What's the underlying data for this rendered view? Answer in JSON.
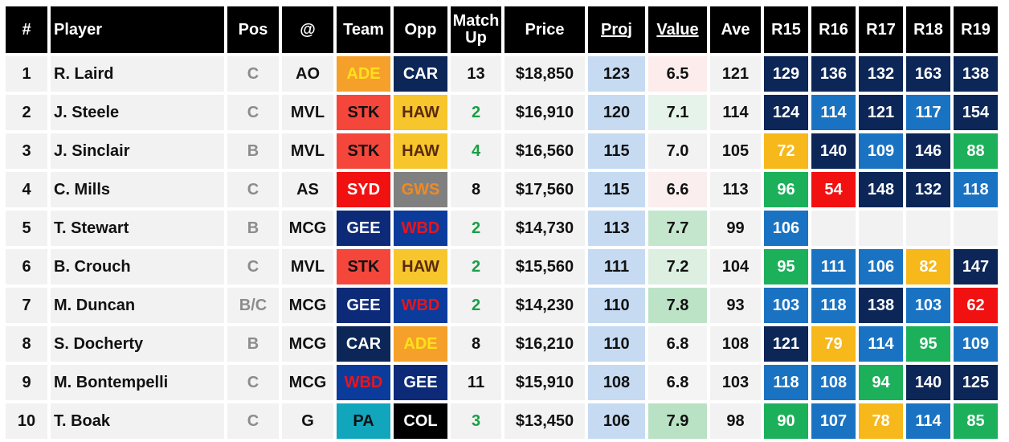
{
  "headers": {
    "rank": "#",
    "player": "Player",
    "pos": "Pos",
    "at": "@",
    "team": "Team",
    "opp": "Opp",
    "match_up_1": "Match",
    "match_up_2": "Up",
    "price": "Price",
    "proj": "Proj",
    "value": "Value",
    "ave": "Ave",
    "r15": "R15",
    "r16": "R16",
    "r17": "R17",
    "r18": "R18",
    "r19": "R19"
  },
  "team_colors": {
    "ADE": {
      "bg": "#f5a02a",
      "fg": "#ffe01b"
    },
    "CAR": {
      "bg": "#0c2657",
      "fg": "#ffffff"
    },
    "STK": {
      "bg": "#f5463c",
      "fg": "#111111"
    },
    "HAW": {
      "bg": "#f6c62c",
      "fg": "#5a2a0c"
    },
    "SYD": {
      "bg": "#f11111",
      "fg": "#ffffff"
    },
    "GWS": {
      "bg": "#808080",
      "fg": "#f28a22"
    },
    "GEE": {
      "bg": "#0c2a78",
      "fg": "#ffffff"
    },
    "WBD": {
      "bg": "#0b3c9b",
      "fg": "#e8141e"
    },
    "PA": {
      "bg": "#12a6bd",
      "fg": "#111111"
    },
    "COL": {
      "bg": "#000000",
      "fg": "#ffffff"
    }
  },
  "value_colors": {
    "6.5": "#fcecec",
    "7.1": "#e6f3ea",
    "7.0": "#f2f2f2",
    "6.6": "#fbeeee",
    "7.7": "#c4e6cd",
    "7.2": "#dcefe1",
    "7.8": "#bde3c7",
    "6.8": "#f4f4f4",
    "7.9": "#b9e1c3"
  },
  "rows": [
    {
      "rank": "1",
      "player": "R. Laird",
      "pos": "C",
      "at": "AO",
      "team": "ADE",
      "opp": "CAR",
      "mu": "13",
      "mu_green": false,
      "price": "$18,850",
      "proj": "123",
      "value": "6.5",
      "ave": "121",
      "rounds": [
        {
          "v": "129",
          "c": "#0c2657"
        },
        {
          "v": "136",
          "c": "#0c2657"
        },
        {
          "v": "132",
          "c": "#0c2657"
        },
        {
          "v": "163",
          "c": "#0c2657"
        },
        {
          "v": "138",
          "c": "#0c2657"
        }
      ]
    },
    {
      "rank": "2",
      "player": "J. Steele",
      "pos": "C",
      "at": "MVL",
      "team": "STK",
      "opp": "HAW",
      "mu": "2",
      "mu_green": true,
      "price": "$16,910",
      "proj": "120",
      "value": "7.1",
      "ave": "114",
      "rounds": [
        {
          "v": "124",
          "c": "#0c2657"
        },
        {
          "v": "114",
          "c": "#1a73c2"
        },
        {
          "v": "121",
          "c": "#0c2657"
        },
        {
          "v": "117",
          "c": "#1a73c2"
        },
        {
          "v": "154",
          "c": "#0c2657"
        }
      ]
    },
    {
      "rank": "3",
      "player": "J. Sinclair",
      "pos": "B",
      "at": "MVL",
      "team": "STK",
      "opp": "HAW",
      "mu": "4",
      "mu_green": true,
      "price": "$16,560",
      "proj": "115",
      "value": "7.0",
      "ave": "105",
      "rounds": [
        {
          "v": "72",
          "c": "#f6b81a"
        },
        {
          "v": "140",
          "c": "#0c2657"
        },
        {
          "v": "109",
          "c": "#1a73c2"
        },
        {
          "v": "146",
          "c": "#0c2657"
        },
        {
          "v": "88",
          "c": "#1db05a"
        }
      ]
    },
    {
      "rank": "4",
      "player": "C. Mills",
      "pos": "C",
      "at": "AS",
      "team": "SYD",
      "opp": "GWS",
      "mu": "8",
      "mu_green": false,
      "price": "$17,560",
      "proj": "115",
      "value": "6.6",
      "ave": "113",
      "rounds": [
        {
          "v": "96",
          "c": "#1db05a"
        },
        {
          "v": "54",
          "c": "#f11111"
        },
        {
          "v": "148",
          "c": "#0c2657"
        },
        {
          "v": "132",
          "c": "#0c2657"
        },
        {
          "v": "118",
          "c": "#1a73c2"
        }
      ]
    },
    {
      "rank": "5",
      "player": "T. Stewart",
      "pos": "B",
      "at": "MCG",
      "team": "GEE",
      "opp": "WBD",
      "mu": "2",
      "mu_green": true,
      "price": "$14,730",
      "proj": "113",
      "value": "7.7",
      "ave": "99",
      "rounds": [
        {
          "v": "106",
          "c": "#1a73c2"
        },
        {
          "v": "",
          "c": ""
        },
        {
          "v": "",
          "c": ""
        },
        {
          "v": "",
          "c": ""
        },
        {
          "v": "",
          "c": ""
        }
      ]
    },
    {
      "rank": "6",
      "player": "B. Crouch",
      "pos": "C",
      "at": "MVL",
      "team": "STK",
      "opp": "HAW",
      "mu": "2",
      "mu_green": true,
      "price": "$15,560",
      "proj": "111",
      "value": "7.2",
      "ave": "104",
      "rounds": [
        {
          "v": "95",
          "c": "#1db05a"
        },
        {
          "v": "111",
          "c": "#1a73c2"
        },
        {
          "v": "106",
          "c": "#1a73c2"
        },
        {
          "v": "82",
          "c": "#f6b81a"
        },
        {
          "v": "147",
          "c": "#0c2657"
        }
      ]
    },
    {
      "rank": "7",
      "player": "M. Duncan",
      "pos": "B/C",
      "at": "MCG",
      "team": "GEE",
      "opp": "WBD",
      "mu": "2",
      "mu_green": true,
      "price": "$14,230",
      "proj": "110",
      "value": "7.8",
      "ave": "93",
      "rounds": [
        {
          "v": "103",
          "c": "#1a73c2"
        },
        {
          "v": "118",
          "c": "#1a73c2"
        },
        {
          "v": "138",
          "c": "#0c2657"
        },
        {
          "v": "103",
          "c": "#1a73c2"
        },
        {
          "v": "62",
          "c": "#f11111"
        }
      ]
    },
    {
      "rank": "8",
      "player": "S. Docherty",
      "pos": "B",
      "at": "MCG",
      "team": "CAR",
      "opp": "ADE",
      "mu": "8",
      "mu_green": false,
      "price": "$16,210",
      "proj": "110",
      "value": "6.8",
      "ave": "108",
      "rounds": [
        {
          "v": "121",
          "c": "#0c2657"
        },
        {
          "v": "79",
          "c": "#f6b81a"
        },
        {
          "v": "114",
          "c": "#1a73c2"
        },
        {
          "v": "95",
          "c": "#1db05a"
        },
        {
          "v": "109",
          "c": "#1a73c2"
        }
      ]
    },
    {
      "rank": "9",
      "player": "M. Bontempelli",
      "pos": "C",
      "at": "MCG",
      "team": "WBD",
      "opp": "GEE",
      "mu": "11",
      "mu_green": false,
      "price": "$15,910",
      "proj": "108",
      "value": "6.8",
      "ave": "103",
      "rounds": [
        {
          "v": "118",
          "c": "#1a73c2"
        },
        {
          "v": "108",
          "c": "#1a73c2"
        },
        {
          "v": "94",
          "c": "#1db05a"
        },
        {
          "v": "140",
          "c": "#0c2657"
        },
        {
          "v": "125",
          "c": "#0c2657"
        }
      ]
    },
    {
      "rank": "10",
      "player": "T. Boak",
      "pos": "C",
      "at": "G",
      "team": "PA",
      "opp": "COL",
      "mu": "3",
      "mu_green": true,
      "price": "$13,450",
      "proj": "106",
      "value": "7.9",
      "ave": "98",
      "rounds": [
        {
          "v": "90",
          "c": "#1db05a"
        },
        {
          "v": "107",
          "c": "#1a73c2"
        },
        {
          "v": "78",
          "c": "#f6b81a"
        },
        {
          "v": "114",
          "c": "#1a73c2"
        },
        {
          "v": "85",
          "c": "#1db05a"
        }
      ]
    }
  ]
}
